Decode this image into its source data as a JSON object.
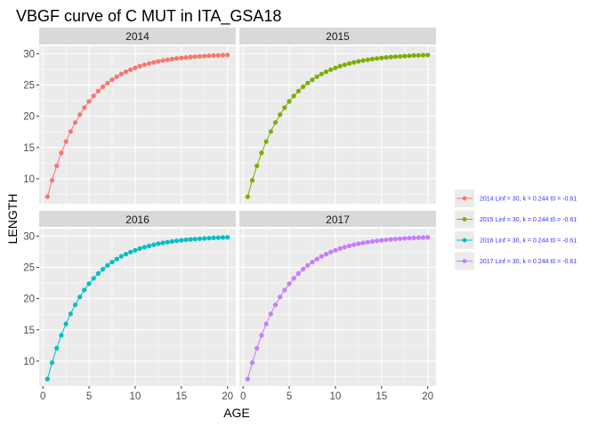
{
  "chart_data": {
    "type": "line",
    "title": "VBGF curve of C MUT in ITA_GSA18",
    "xlabel": "AGE",
    "ylabel": "LENGTH",
    "xlim": [
      -0.4,
      20.9
    ],
    "ylim": [
      6.0,
      31.2
    ],
    "xticks": [
      0,
      5,
      10,
      15,
      20
    ],
    "yticks": [
      10,
      15,
      20,
      25,
      30
    ],
    "grid": true,
    "legend_position": "right",
    "legend_text_color": "#3333ff",
    "background_color": "#ebebeb",
    "strip_color": "#d9d9d9",
    "model": {
      "Linf": 30,
      "k": 0.244,
      "t0": -0.61
    },
    "x": [
      0.5,
      1,
      1.5,
      2,
      2.5,
      3,
      3.5,
      4,
      4.5,
      5,
      5.5,
      6,
      6.5,
      7,
      7.5,
      8,
      8.5,
      9,
      9.5,
      10,
      10.5,
      11,
      11.5,
      12,
      12.5,
      13,
      13.5,
      14,
      14.5,
      15,
      15.5,
      16,
      16.5,
      17,
      17.5,
      18,
      18.5,
      19,
      19.5,
      20
    ],
    "panels": [
      {
        "facet": "2014",
        "color": "#f8766d",
        "legend_label": "2014 Linf = 30, k = 0.244 t0 = -0.61"
      },
      {
        "facet": "2015",
        "color": "#7cae00",
        "legend_label": "2015 Linf = 30, k = 0.244 t0 = -0.61"
      },
      {
        "facet": "2016",
        "color": "#00bfc4",
        "legend_label": "2016 Linf = 30, k = 0.244 t0 = -0.61"
      },
      {
        "facet": "2017",
        "color": "#c77cff",
        "legend_label": "2017 Linf = 30, k = 0.244 t0 = -0.61"
      }
    ]
  }
}
